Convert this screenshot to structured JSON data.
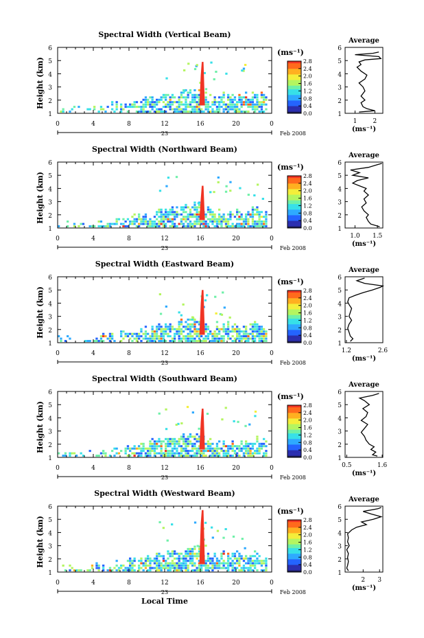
{
  "chart_data": [
    {
      "type": "heatmap",
      "title": "Spectral Width (Vertical Beam)",
      "ylabel": "Height (km)",
      "ylim": [
        1,
        6
      ],
      "yticks": [
        "1",
        "2",
        "3",
        "4",
        "5",
        "6"
      ],
      "xlim": [
        0,
        24
      ],
      "xticks": [
        "0",
        "4",
        "8",
        "12",
        "16",
        "20",
        "0"
      ],
      "date_day": "23",
      "date_label": "Feb 2008",
      "cbar_unit": "(ms⁻¹)",
      "cbar_ticks": [
        "0.0",
        "0.4",
        "0.8",
        "1.2",
        "1.6",
        "2.0",
        "2.4",
        "2.8"
      ],
      "cbar_max": 2.8,
      "spike_time": 16.2,
      "spike_top": 4.9,
      "avg": {
        "title": "Average",
        "xlabel": "(ms⁻¹)",
        "xlim": [
          0.5,
          2.4
        ],
        "xticks": [
          "1",
          "2"
        ],
        "xtickvals": [
          1,
          2
        ],
        "profile": [
          [
            1.1,
            1.2
          ],
          [
            1.2,
            2.0
          ],
          [
            1.35,
            1.6
          ],
          [
            1.5,
            1.4
          ],
          [
            1.8,
            1.3
          ],
          [
            2.0,
            1.5
          ],
          [
            2.3,
            1.3
          ],
          [
            2.7,
            1.5
          ],
          [
            3.0,
            1.4
          ],
          [
            3.3,
            1.2
          ],
          [
            3.6,
            1.5
          ],
          [
            3.9,
            1.6
          ],
          [
            4.2,
            1.3
          ],
          [
            4.5,
            1.1
          ],
          [
            4.7,
            1.3
          ],
          [
            4.9,
            1.2
          ],
          [
            5.05,
            1.5
          ],
          [
            5.15,
            2.3
          ],
          [
            5.3,
            2.2
          ],
          [
            5.45,
            1.0
          ],
          [
            5.55,
            1.9
          ],
          [
            5.65,
            2.2
          ]
        ]
      }
    },
    {
      "type": "heatmap",
      "title": "Spectral Width (Northward Beam)",
      "ylabel": "Height (km)",
      "ylim": [
        1,
        6
      ],
      "yticks": [
        "1",
        "2",
        "3",
        "4",
        "5",
        "6"
      ],
      "xlim": [
        0,
        24
      ],
      "xticks": [
        "0",
        "4",
        "8",
        "12",
        "16",
        "20",
        "0"
      ],
      "date_day": "23",
      "date_label": "Feb 2008",
      "cbar_unit": "(ms⁻¹)",
      "cbar_ticks": [
        "0.0",
        "0.4",
        "0.8",
        "1.2",
        "1.6",
        "2.0",
        "2.4",
        "2.8"
      ],
      "cbar_max": 2.8,
      "spike_time": 16.2,
      "spike_top": 4.2,
      "avg": {
        "title": "Average",
        "xlabel": "(ms⁻¹)",
        "xlim": [
          0.78,
          1.62
        ],
        "xticks": [
          "1.0",
          "1.5"
        ],
        "xtickvals": [
          1.0,
          1.5
        ],
        "profile": [
          [
            1.1,
            1.55
          ],
          [
            1.3,
            1.35
          ],
          [
            1.5,
            1.3
          ],
          [
            1.8,
            1.25
          ],
          [
            2.0,
            1.3
          ],
          [
            2.3,
            1.2
          ],
          [
            2.6,
            1.15
          ],
          [
            2.9,
            1.25
          ],
          [
            3.2,
            1.2
          ],
          [
            3.5,
            1.3
          ],
          [
            3.8,
            1.2
          ],
          [
            4.0,
            1.25
          ],
          [
            4.2,
            1.1
          ],
          [
            4.4,
            0.95
          ],
          [
            4.6,
            1.05
          ],
          [
            4.8,
            1.3
          ],
          [
            5.0,
            0.95
          ],
          [
            5.2,
            1.1
          ],
          [
            5.4,
            0.9
          ],
          [
            5.6,
            1.3
          ],
          [
            5.8,
            1.5
          ],
          [
            5.9,
            1.6
          ]
        ]
      }
    },
    {
      "type": "heatmap",
      "title": "Spectral Width (Eastward Beam)",
      "ylabel": "Height (km)",
      "ylim": [
        1,
        6
      ],
      "yticks": [
        "1",
        "2",
        "3",
        "4",
        "5",
        "6"
      ],
      "xlim": [
        0,
        24
      ],
      "xticks": [
        "0",
        "4",
        "8",
        "12",
        "16",
        "20",
        "0"
      ],
      "date_day": "23",
      "date_label": "Feb 2008",
      "cbar_unit": "(ms⁻¹)",
      "cbar_ticks": [
        "0.0",
        "0.4",
        "0.8",
        "1.2",
        "1.6",
        "2.0",
        "2.4",
        "2.8"
      ],
      "cbar_max": 2.8,
      "spike_time": 16.2,
      "spike_top": 5.0,
      "avg": {
        "title": "Average",
        "xlabel": "(ms⁻¹)",
        "xlim": [
          1.15,
          2.6
        ],
        "xticks": [
          "1.2",
          "2.6"
        ],
        "xtickvals": [
          1.2,
          2.6
        ],
        "profile": [
          [
            1.1,
            1.35
          ],
          [
            1.3,
            1.45
          ],
          [
            1.5,
            1.35
          ],
          [
            1.8,
            1.3
          ],
          [
            2.1,
            1.25
          ],
          [
            2.4,
            1.3
          ],
          [
            2.7,
            1.4
          ],
          [
            3.0,
            1.3
          ],
          [
            3.3,
            1.35
          ],
          [
            3.6,
            1.4
          ],
          [
            3.9,
            1.3
          ],
          [
            4.1,
            1.25
          ],
          [
            4.4,
            1.3
          ],
          [
            4.6,
            1.55
          ],
          [
            4.8,
            1.85
          ],
          [
            5.0,
            2.2
          ],
          [
            5.2,
            2.5
          ],
          [
            5.3,
            2.6
          ],
          [
            5.5,
            1.9
          ],
          [
            5.7,
            1.6
          ],
          [
            5.9,
            1.9
          ]
        ]
      }
    },
    {
      "type": "heatmap",
      "title": "Spectral Width (Southward Beam)",
      "ylabel": "Height (km)",
      "ylim": [
        1,
        6
      ],
      "yticks": [
        "1",
        "2",
        "3",
        "4",
        "5",
        "6"
      ],
      "xlim": [
        0,
        24
      ],
      "xticks": [
        "0",
        "4",
        "8",
        "12",
        "16",
        "20",
        "0"
      ],
      "date_day": "23",
      "date_label": "Feb 2008",
      "cbar_unit": "(ms⁻¹)",
      "cbar_ticks": [
        "0.0",
        "0.4",
        "0.8",
        "1.2",
        "1.6",
        "2.0",
        "2.4",
        "2.8"
      ],
      "cbar_max": 2.8,
      "spike_time": 16.2,
      "spike_top": 4.7,
      "avg": {
        "title": "Average",
        "xlabel": "(ms⁻¹)",
        "xlim": [
          0.45,
          1.62
        ],
        "xticks": [
          "0.5",
          "1.6"
        ],
        "xtickvals": [
          0.5,
          1.6
        ],
        "profile": [
          [
            1.1,
            1.45
          ],
          [
            1.2,
            1.3
          ],
          [
            1.4,
            1.4
          ],
          [
            1.6,
            1.25
          ],
          [
            1.8,
            1.35
          ],
          [
            2.0,
            1.2
          ],
          [
            2.3,
            1.1
          ],
          [
            2.6,
            1.05
          ],
          [
            2.9,
            0.95
          ],
          [
            3.2,
            1.05
          ],
          [
            3.5,
            1.15
          ],
          [
            3.8,
            0.95
          ],
          [
            4.1,
            1.1
          ],
          [
            4.4,
            1.15
          ],
          [
            4.7,
            1.0
          ],
          [
            5.0,
            1.2
          ],
          [
            5.3,
            1.05
          ],
          [
            5.5,
            0.9
          ],
          [
            5.7,
            1.3
          ],
          [
            5.85,
            1.5
          ]
        ]
      }
    },
    {
      "type": "heatmap",
      "title": "Spectral Width (Westward Beam)",
      "ylabel": "Height (km)",
      "ylim": [
        1,
        6
      ],
      "yticks": [
        "1",
        "2",
        "3",
        "4",
        "5",
        "6"
      ],
      "xlim": [
        0,
        24
      ],
      "xticks": [
        "0",
        "4",
        "8",
        "12",
        "16",
        "20",
        "0"
      ],
      "xlabel": "Local Time",
      "date_day": "23",
      "date_label": "Feb 2008",
      "cbar_unit": "(ms⁻¹)",
      "cbar_ticks": [
        "0.0",
        "0.4",
        "0.8",
        "1.2",
        "1.6",
        "2.0",
        "2.4",
        "2.8"
      ],
      "cbar_max": 2.8,
      "spike_time": 16.2,
      "spike_top": 5.7,
      "avg": {
        "title": "Average",
        "xlabel": "(ms⁻¹)",
        "xlim": [
          0.9,
          3.2
        ],
        "xticks": [
          "2",
          "3"
        ],
        "xtickvals": [
          2,
          3
        ],
        "profile": [
          [
            1.1,
            1.1
          ],
          [
            1.3,
            1.0
          ],
          [
            1.5,
            1.05
          ],
          [
            1.8,
            1.1
          ],
          [
            2.1,
            1.05
          ],
          [
            2.4,
            1.1
          ],
          [
            2.7,
            1.0
          ],
          [
            3.0,
            1.15
          ],
          [
            3.3,
            1.05
          ],
          [
            3.6,
            1.1
          ],
          [
            3.9,
            1.05
          ],
          [
            4.2,
            1.3
          ],
          [
            4.4,
            1.6
          ],
          [
            4.6,
            2.2
          ],
          [
            4.8,
            1.9
          ],
          [
            5.0,
            2.6
          ],
          [
            5.2,
            3.1
          ],
          [
            5.4,
            2.5
          ],
          [
            5.6,
            2.0
          ],
          [
            5.8,
            2.9
          ],
          [
            5.9,
            3.1
          ]
        ]
      }
    }
  ]
}
